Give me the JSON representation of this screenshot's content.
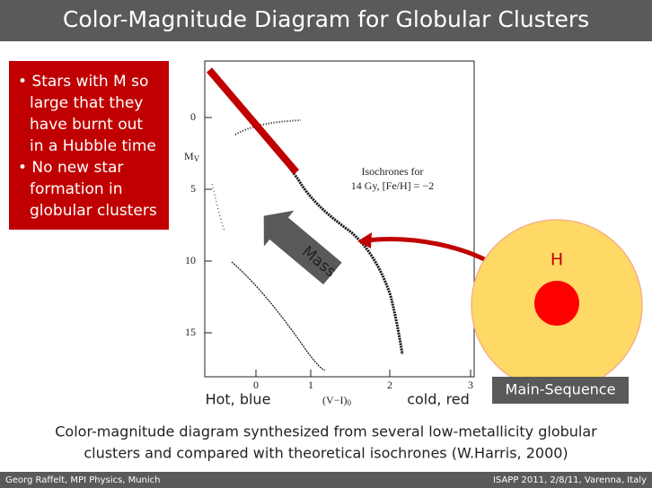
{
  "header": {
    "title": "Color-Magnitude Diagram for Globular Clusters"
  },
  "bullets": [
    {
      "lines": [
        "• Stars with M so",
        "large that they",
        "have burnt out",
        "in a Hubble time"
      ]
    },
    {
      "lines": [
        "• No new star",
        "formation in",
        "globular clusters"
      ]
    }
  ],
  "plot": {
    "y_label": "M",
    "y_label_sub": "V",
    "x_label": "(V−I)",
    "x_label_sub": "0",
    "yticks": [
      0,
      5,
      10,
      15
    ],
    "xticks": [
      0,
      1,
      2,
      3
    ],
    "note": [
      "Isochrones for",
      "14 Gy, [Fe/H] = −2"
    ],
    "arrow_label": "Mass",
    "left_label": "Hot, blue",
    "right_label": "cold, red"
  },
  "sun": {
    "label": "H",
    "caption": "Main-Sequence"
  },
  "caption": [
    "Color-magnitude diagram synthesized from several low-metallicity globular",
    "clusters and compared with theoretical isochrones (W.Harris, 2000)"
  ],
  "footer": {
    "left": "Georg Raffelt, MPI Physics, Munich",
    "right": "ISAPP 2011, 2/8/11, Varenna, Italy"
  }
}
